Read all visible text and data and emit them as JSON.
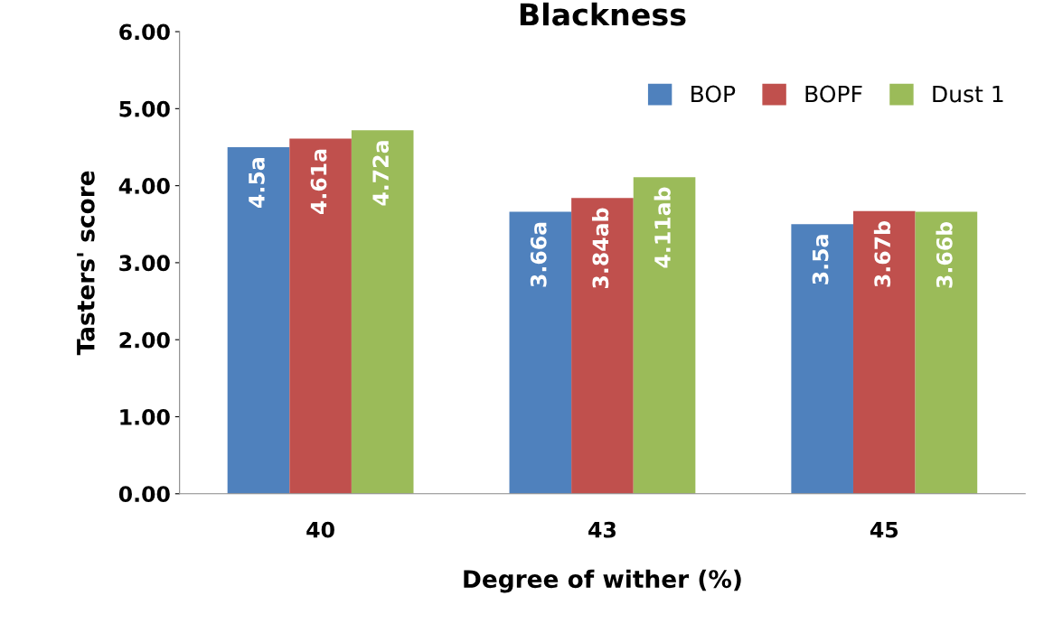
{
  "chart_data": {
    "type": "bar",
    "title": "Blackness",
    "xlabel": "Degree of wither (%)",
    "ylabel": "Tasters' score",
    "categories": [
      "40",
      "43",
      "45"
    ],
    "series": [
      {
        "name": "BOP",
        "color": "#4f81bd",
        "values": [
          4.5,
          3.66,
          3.5
        ],
        "value_labels": [
          "4.5a",
          "3.66a",
          "3.5a"
        ]
      },
      {
        "name": "BOPF",
        "color": "#c0504d",
        "values": [
          4.61,
          3.84,
          3.67
        ],
        "value_labels": [
          "4.61a",
          "3.84ab",
          "3.67b"
        ]
      },
      {
        "name": "Dust 1",
        "color": "#9bbb59",
        "values": [
          4.72,
          4.11,
          3.66
        ],
        "value_labels": [
          "4.72a",
          "4.11ab",
          "3.66b"
        ]
      }
    ],
    "ylim": [
      0,
      6
    ],
    "yticks": [
      {
        "value": 0,
        "label": "0.00"
      },
      {
        "value": 1,
        "label": "1.00"
      },
      {
        "value": 2,
        "label": "2.00"
      },
      {
        "value": 3,
        "label": "3.00"
      },
      {
        "value": 4,
        "label": "4.00"
      },
      {
        "value": 5,
        "label": "5.00"
      },
      {
        "value": 6,
        "label": "6.00"
      }
    ],
    "legend": "top right",
    "grid": false
  }
}
